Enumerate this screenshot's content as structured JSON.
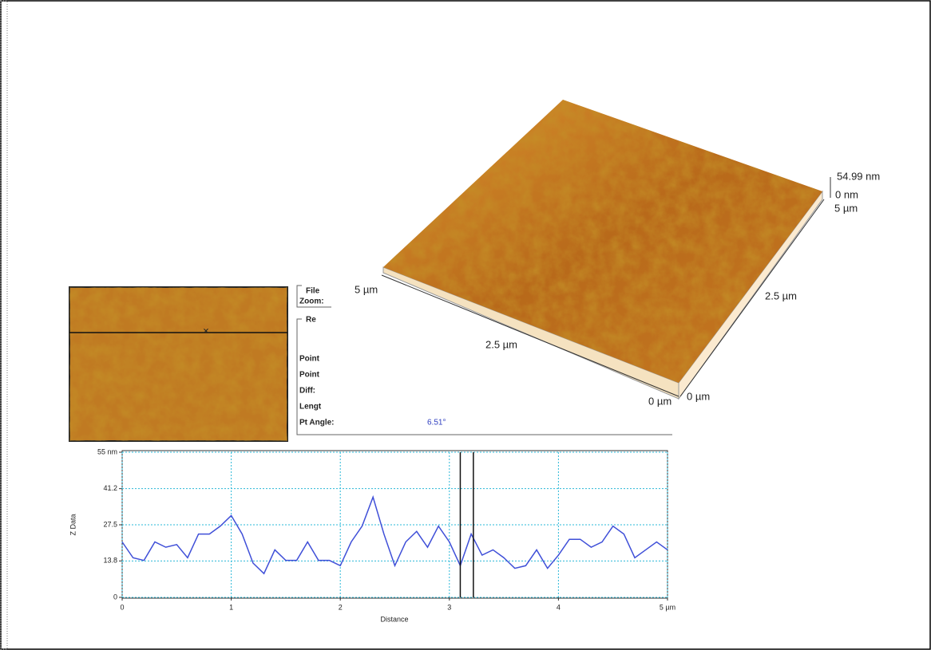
{
  "chart_data": {
    "type": "line",
    "x_label": "Distance",
    "y_label": "Z Data",
    "x": [
      0,
      0.1,
      0.2,
      0.3,
      0.4,
      0.5,
      0.6,
      0.7,
      0.8,
      0.9,
      1.0,
      1.1,
      1.2,
      1.3,
      1.4,
      1.5,
      1.6,
      1.7,
      1.8,
      1.9,
      2.0,
      2.1,
      2.2,
      2.3,
      2.4,
      2.5,
      2.6,
      2.7,
      2.8,
      2.9,
      3.0,
      3.1,
      3.2,
      3.3,
      3.4,
      3.5,
      3.6,
      3.7,
      3.8,
      3.9,
      4.0,
      4.1,
      4.2,
      4.3,
      4.4,
      4.5,
      4.6,
      4.7,
      4.8,
      4.9,
      5.0
    ],
    "values": [
      21,
      15,
      14,
      21,
      19,
      20,
      15,
      24,
      24,
      27,
      31,
      24,
      13,
      9,
      18,
      14,
      14,
      21,
      14,
      14,
      12,
      21,
      27,
      38,
      24,
      12,
      21,
      25,
      19,
      27,
      21,
      12,
      24,
      16,
      18,
      15,
      11,
      12,
      18,
      11,
      16,
      22,
      22,
      19,
      21,
      27,
      24,
      15,
      18,
      21,
      18
    ],
    "color": "#3f4fd8",
    "xlim": [
      0,
      5
    ],
    "xticks": [
      0,
      1,
      2,
      3,
      4,
      {
        "value": 5,
        "label": "5 µm"
      }
    ],
    "ylim": [
      0,
      55
    ],
    "yticks": [
      0,
      13.8,
      27.5,
      41.2,
      {
        "value": 55,
        "label": "55 nm"
      }
    ],
    "grid": true,
    "cursors": [
      3.1,
      3.22
    ]
  },
  "surface_3d": {
    "z_max": "54.99 nm",
    "z_min": "0 nm",
    "back_right": "5 µm",
    "right_mid": "2.5 µm",
    "right_origin": "0 µm",
    "front_origin": "0 µm",
    "front_mid": "2.5 µm",
    "front_left": "5 µm"
  },
  "info_panel": {
    "file": "File",
    "zoom": "Zoom:",
    "result": "Re",
    "point1": "Point",
    "point2": "Point",
    "diff": "Diff:",
    "length": "Lengt",
    "angle": "Pt Angle:",
    "angle_value": "6.51°"
  }
}
